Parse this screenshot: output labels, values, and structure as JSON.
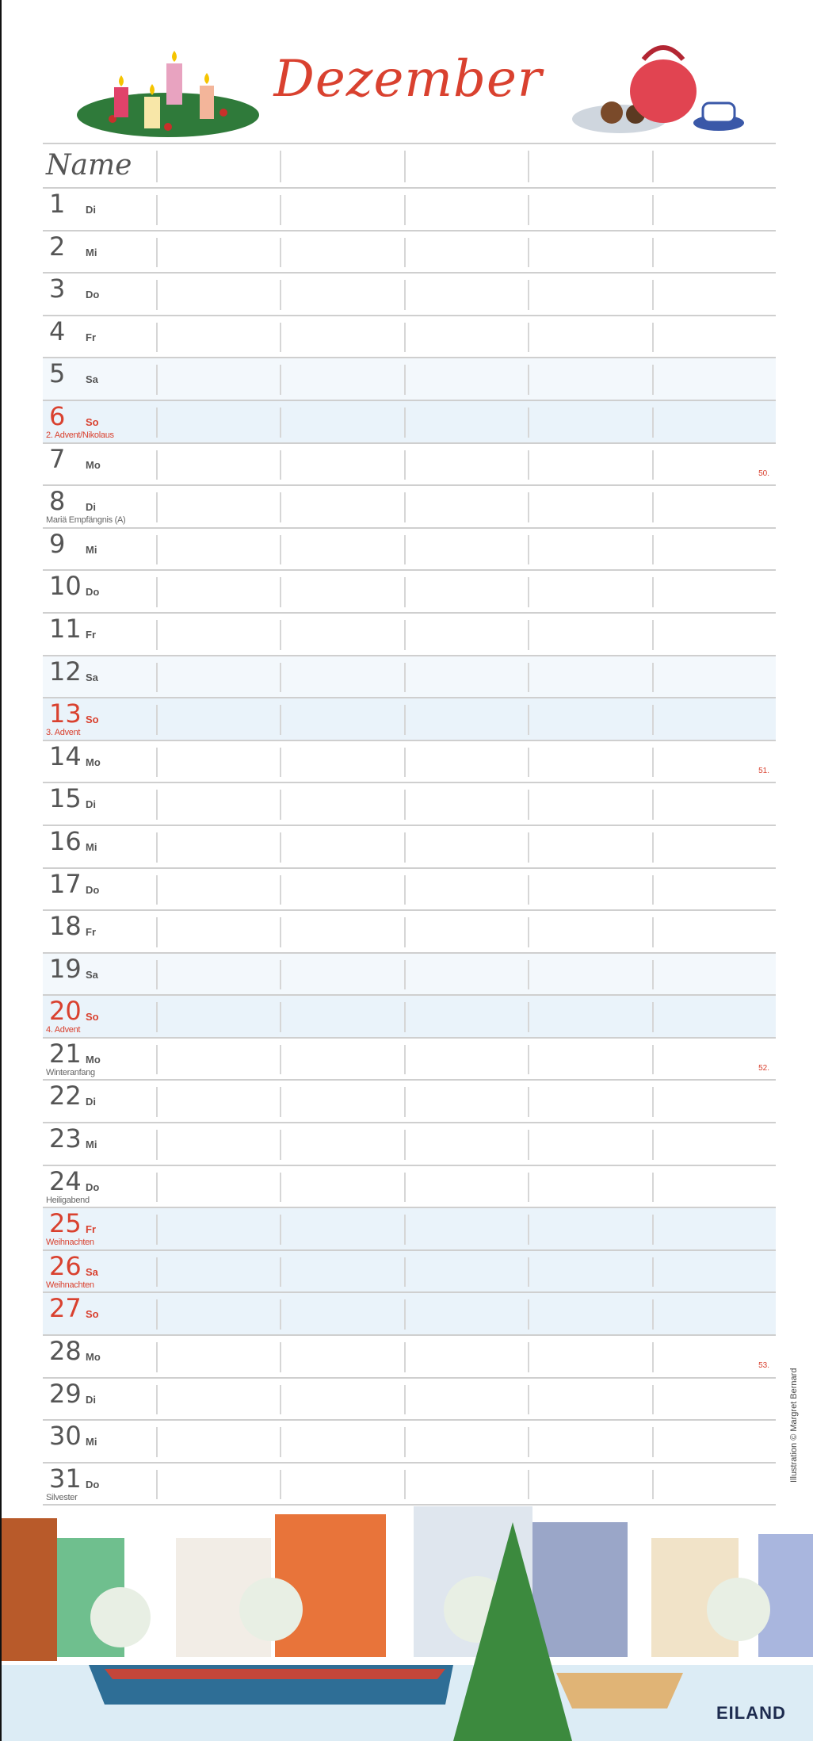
{
  "title": "Dezember",
  "header": {
    "name_label": "Name"
  },
  "colors": {
    "accent": "#d9412f",
    "weekend_shade": "#eaf3fa"
  },
  "days": [
    {
      "day": "1",
      "weekday": "Di"
    },
    {
      "day": "2",
      "weekday": "Mi"
    },
    {
      "day": "3",
      "weekday": "Do"
    },
    {
      "day": "4",
      "weekday": "Fr"
    },
    {
      "day": "5",
      "weekday": "Sa",
      "shade": "sat"
    },
    {
      "day": "6",
      "weekday": "So",
      "shade": "sun",
      "red": true,
      "holiday": "2. Advent/Nikolaus"
    },
    {
      "day": "7",
      "weekday": "Mo",
      "week": "50."
    },
    {
      "day": "8",
      "weekday": "Di",
      "holiday": "Mariä Empfängnis (A)"
    },
    {
      "day": "9",
      "weekday": "Mi"
    },
    {
      "day": "10",
      "weekday": "Do"
    },
    {
      "day": "11",
      "weekday": "Fr"
    },
    {
      "day": "12",
      "weekday": "Sa",
      "shade": "sat"
    },
    {
      "day": "13",
      "weekday": "So",
      "shade": "sun",
      "red": true,
      "holiday": "3. Advent"
    },
    {
      "day": "14",
      "weekday": "Mo",
      "week": "51."
    },
    {
      "day": "15",
      "weekday": "Di"
    },
    {
      "day": "16",
      "weekday": "Mi"
    },
    {
      "day": "17",
      "weekday": "Do"
    },
    {
      "day": "18",
      "weekday": "Fr"
    },
    {
      "day": "19",
      "weekday": "Sa",
      "shade": "sat"
    },
    {
      "day": "20",
      "weekday": "So",
      "shade": "sun",
      "red": true,
      "holiday": "4. Advent"
    },
    {
      "day": "21",
      "weekday": "Mo",
      "holiday": "Winteranfang",
      "week": "52."
    },
    {
      "day": "22",
      "weekday": "Di"
    },
    {
      "day": "23",
      "weekday": "Mi"
    },
    {
      "day": "24",
      "weekday": "Do",
      "holiday": "Heiligabend"
    },
    {
      "day": "25",
      "weekday": "Fr",
      "shade": "sun",
      "red": true,
      "holiday": "Weihnachten"
    },
    {
      "day": "26",
      "weekday": "Sa",
      "shade": "sun",
      "red": true,
      "holiday": "Weihnachten"
    },
    {
      "day": "27",
      "weekday": "So",
      "shade": "sun",
      "red": true
    },
    {
      "day": "28",
      "weekday": "Mo",
      "week": "53."
    },
    {
      "day": "29",
      "weekday": "Di"
    },
    {
      "day": "30",
      "weekday": "Mi"
    },
    {
      "day": "31",
      "weekday": "Do",
      "holiday": "Silvester"
    }
  ],
  "credit": "Illustration © Margret Bernard",
  "logo": "EILAND"
}
